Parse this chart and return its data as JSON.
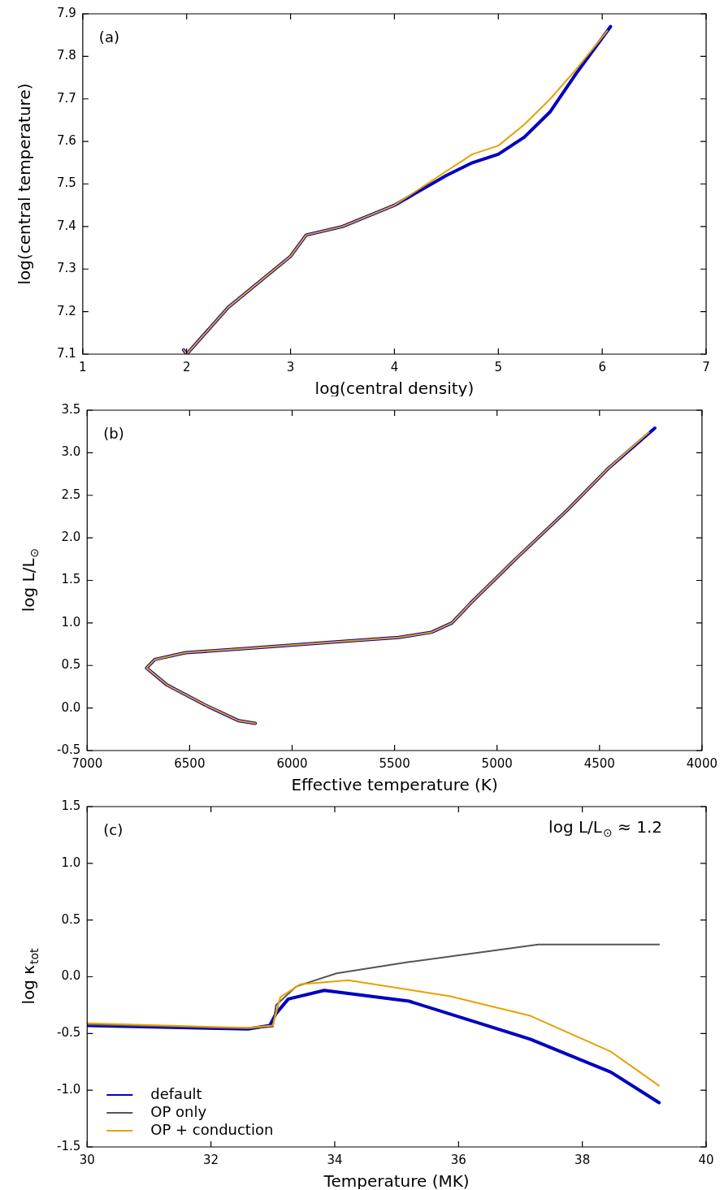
{
  "chart_data": [
    {
      "type": "line",
      "xlabel": "log(central density)",
      "ylabel": "log(central temperature)",
      "annotations": [
        "(a)"
      ],
      "xlim": [
        1,
        7
      ],
      "xticks": [
        1,
        2,
        3,
        4,
        5,
        6,
        7
      ],
      "ylim": [
        7.1,
        7.9
      ],
      "yticks": [
        7.1,
        7.2,
        7.3,
        7.4,
        7.5,
        7.6,
        7.7,
        7.8,
        7.9
      ],
      "grid": false,
      "legend": false,
      "series": [
        {
          "color": "#0000c0",
          "x": [
            1.97,
            2.0,
            2.4,
            3.0,
            3.15,
            3.5,
            4.0,
            4.5,
            4.75,
            5.0,
            5.25,
            5.5,
            5.75,
            6.08
          ],
          "values": [
            7.11,
            7.1,
            7.21,
            7.33,
            7.38,
            7.4,
            7.45,
            7.52,
            7.55,
            7.57,
            7.61,
            7.67,
            7.76,
            7.87
          ]
        },
        {
          "color": "#e8a000",
          "x": [
            1.97,
            2.0,
            2.4,
            3.0,
            3.15,
            3.5,
            4.0,
            4.5,
            4.75,
            5.0,
            5.25,
            5.5,
            5.75,
            6.05
          ],
          "values": [
            7.11,
            7.1,
            7.21,
            7.33,
            7.38,
            7.4,
            7.45,
            7.53,
            7.57,
            7.59,
            7.64,
            7.7,
            7.77,
            7.86
          ]
        }
      ]
    },
    {
      "type": "line",
      "xlabel": "Effective temperature (K)",
      "ylabel": "log L/L$_{⊙}$",
      "annotations": [
        "(b)"
      ],
      "xlim": [
        7000,
        4000
      ],
      "xticks": [
        7000,
        6500,
        6000,
        5500,
        5000,
        4500,
        4000
      ],
      "ylim": [
        -0.5,
        3.5
      ],
      "yticks": [
        -0.5,
        {
          "value": 0,
          "label": "0.0"
        },
        0.5,
        {
          "value": 1,
          "label": "1.0"
        },
        1.5,
        {
          "value": 2,
          "label": "2.0"
        },
        2.5,
        {
          "value": 3,
          "label": "3.0"
        },
        3.5
      ],
      "grid": false,
      "legend": false,
      "series": [
        {
          "color": "#0000c0",
          "x": [
            6180,
            6260,
            6420,
            6610,
            6710,
            6670,
            6520,
            6220,
            5830,
            5480,
            5320,
            5220,
            5130,
            4910,
            4660,
            4460,
            4230
          ],
          "values": [
            -0.18,
            -0.15,
            0.03,
            0.27,
            0.47,
            0.57,
            0.65,
            0.7,
            0.77,
            0.83,
            0.89,
            1.0,
            1.23,
            1.75,
            2.32,
            2.81,
            3.29
          ]
        },
        {
          "color": "#e8a000",
          "x": [
            6180,
            6260,
            6420,
            6610,
            6710,
            6670,
            6520,
            6220,
            5830,
            5480,
            5320,
            5220,
            5130,
            4910,
            4660,
            4460,
            4260
          ],
          "values": [
            -0.18,
            -0.15,
            0.03,
            0.27,
            0.47,
            0.57,
            0.65,
            0.7,
            0.77,
            0.83,
            0.89,
            1.0,
            1.23,
            1.75,
            2.32,
            2.81,
            3.24
          ]
        }
      ]
    },
    {
      "type": "line",
      "xlabel": "Temperature (MK)",
      "ylabel": "log κ$_{tot}$",
      "annotations": [
        "(c)",
        "log L/L$_{⊙}$ ≈ 1.2"
      ],
      "xlim": [
        30,
        40
      ],
      "xticks": [
        30,
        32,
        34,
        36,
        38,
        40
      ],
      "ylim": [
        -1.5,
        1.5
      ],
      "yticks": [
        -1.5,
        {
          "value": -1,
          "label": "-1.0"
        },
        -0.5,
        {
          "value": 0,
          "label": "0.0"
        },
        0.5,
        {
          "value": 1,
          "label": "1.0"
        },
        1.5
      ],
      "grid": false,
      "legend": "bottom left",
      "series": [
        {
          "name": "default",
          "color": "#0000c0",
          "x": [
            30,
            32.6,
            32.95,
            33.05,
            33.25,
            33.83,
            35.2,
            37.16,
            38.46,
            39.24
          ],
          "values": [
            -0.43,
            -0.46,
            -0.43,
            -0.325,
            -0.196,
            -0.12,
            -0.215,
            -0.55,
            -0.84,
            -1.11
          ]
        },
        {
          "name": "OP only",
          "color": "#555555",
          "x": [
            30,
            32.6,
            33.0,
            33.05,
            33.38,
            34.03,
            35.2,
            37.29,
            39.24
          ],
          "values": [
            -0.42,
            -0.455,
            -0.44,
            -0.25,
            -0.085,
            0.03,
            0.13,
            0.285,
            0.285
          ]
        },
        {
          "name": "OP + conduction",
          "color": "#e8a000",
          "x": [
            30,
            32.6,
            33.0,
            33.12,
            33.44,
            34.22,
            35.85,
            37.16,
            38.46,
            39.24
          ],
          "values": [
            -0.41,
            -0.45,
            -0.43,
            -0.18,
            -0.067,
            -0.03,
            -0.17,
            -0.344,
            -0.66,
            -0.96
          ]
        }
      ]
    }
  ]
}
